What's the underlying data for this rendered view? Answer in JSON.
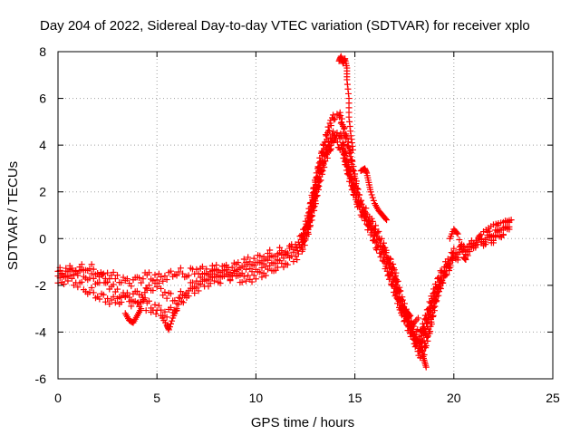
{
  "chart_data": {
    "type": "scatter",
    "title": "Day 204 of 2022, Sidereal Day-to-day VTEC variation (SDTVAR) for receiver xplo",
    "xlabel": "GPS time / hours",
    "ylabel": "SDTVAR / TECUs",
    "xlim": [
      0,
      25
    ],
    "ylim": [
      -6,
      8
    ],
    "xticks": [
      0,
      5,
      10,
      15,
      20,
      25
    ],
    "yticks": [
      -6,
      -4,
      -2,
      0,
      2,
      4,
      6,
      8
    ],
    "grid": true,
    "marker": "plus",
    "series": [
      {
        "name": "SDTVAR",
        "color": "#ff0000",
        "tracks": [
          [
            [
              0.0,
              -1.6
            ],
            [
              0.5,
              -1.3
            ],
            [
              1.0,
              -1.4
            ],
            [
              1.5,
              -1.6
            ],
            [
              2.0,
              -1.8
            ],
            [
              2.5,
              -1.5
            ],
            [
              3.0,
              -1.7
            ],
            [
              3.5,
              -1.9
            ],
            [
              4.0,
              -1.8
            ],
            [
              4.5,
              -1.6
            ],
            [
              5.0,
              -1.7
            ],
            [
              5.5,
              -1.6
            ],
            [
              6.0,
              -1.4
            ],
            [
              6.5,
              -1.5
            ],
            [
              7.0,
              -1.3
            ],
            [
              7.5,
              -1.4
            ],
            [
              8.0,
              -1.3
            ],
            [
              8.5,
              -1.3
            ],
            [
              9.0,
              -1.2
            ],
            [
              9.5,
              -1.0
            ],
            [
              10.0,
              -0.9
            ],
            [
              10.5,
              -0.7
            ],
            [
              11.0,
              -0.6
            ],
            [
              11.5,
              -0.5
            ],
            [
              12.0,
              -0.3
            ],
            [
              12.3,
              0.0
            ],
            [
              12.6,
              0.8
            ],
            [
              12.9,
              2.0
            ],
            [
              13.2,
              3.2
            ],
            [
              13.5,
              4.2
            ],
            [
              13.8,
              5.0
            ],
            [
              14.0,
              5.3
            ],
            [
              14.2,
              5.4
            ],
            [
              14.4,
              4.8
            ],
            [
              14.6,
              4.2
            ],
            [
              14.8,
              3.5
            ],
            [
              15.0,
              2.6
            ],
            [
              15.2,
              1.8
            ],
            [
              15.5,
              1.0
            ],
            [
              15.8,
              0.5
            ],
            [
              16.1,
              0.0
            ],
            [
              16.4,
              -0.4
            ],
            [
              16.7,
              -0.8
            ],
            [
              17.0,
              -1.4
            ],
            [
              17.3,
              -2.4
            ],
            [
              17.6,
              -3.2
            ],
            [
              17.9,
              -3.8
            ],
            [
              18.1,
              -4.0
            ],
            [
              18.3,
              -4.2
            ],
            [
              18.5,
              -3.6
            ],
            [
              18.8,
              -2.8
            ],
            [
              19.1,
              -2.0
            ],
            [
              19.4,
              -1.4
            ],
            [
              19.7,
              -1.0
            ],
            [
              20.0,
              -0.6
            ],
            [
              20.4,
              -0.4
            ],
            [
              20.8,
              -0.3
            ],
            [
              21.2,
              -0.1
            ],
            [
              21.6,
              0.0
            ],
            [
              22.0,
              0.1
            ],
            [
              22.4,
              0.2
            ],
            [
              22.8,
              0.5
            ]
          ],
          [
            [
              0.0,
              -1.9
            ],
            [
              0.5,
              -1.7
            ],
            [
              1.0,
              -1.9
            ],
            [
              1.5,
              -2.2
            ],
            [
              2.0,
              -2.4
            ],
            [
              2.5,
              -2.6
            ],
            [
              3.0,
              -2.7
            ],
            [
              3.5,
              -2.5
            ],
            [
              4.0,
              -2.4
            ],
            [
              4.5,
              -2.8
            ],
            [
              5.0,
              -3.0
            ],
            [
              5.5,
              -3.2
            ],
            [
              6.0,
              -2.9
            ],
            [
              6.5,
              -2.4
            ],
            [
              7.0,
              -2.1
            ],
            [
              7.5,
              -1.9
            ],
            [
              8.0,
              -1.8
            ],
            [
              8.5,
              -1.7
            ],
            [
              9.0,
              -1.5
            ],
            [
              9.5,
              -1.3
            ],
            [
              10.0,
              -1.2
            ],
            [
              10.5,
              -1.0
            ],
            [
              11.0,
              -0.9
            ],
            [
              11.5,
              -0.6
            ],
            [
              12.0,
              -0.4
            ],
            [
              12.3,
              -0.2
            ],
            [
              12.6,
              0.4
            ],
            [
              12.9,
              1.5
            ],
            [
              13.2,
              2.8
            ],
            [
              13.5,
              3.6
            ],
            [
              13.8,
              4.3
            ],
            [
              14.0,
              4.6
            ],
            [
              14.2,
              4.5
            ],
            [
              14.4,
              4.1
            ],
            [
              14.6,
              3.3
            ],
            [
              14.8,
              2.7
            ],
            [
              15.0,
              2.0
            ],
            [
              15.2,
              1.3
            ],
            [
              15.5,
              0.8
            ],
            [
              15.8,
              0.3
            ],
            [
              16.1,
              -0.3
            ],
            [
              16.4,
              -0.8
            ],
            [
              16.7,
              -1.5
            ],
            [
              17.0,
              -2.2
            ],
            [
              17.3,
              -3.0
            ],
            [
              17.6,
              -3.6
            ],
            [
              17.9,
              -4.2
            ],
            [
              18.1,
              -4.5
            ],
            [
              18.3,
              -4.7
            ],
            [
              18.5,
              -4.2
            ],
            [
              18.8,
              -3.1
            ],
            [
              19.1,
              -2.4
            ],
            [
              19.4,
              -1.8
            ],
            [
              19.7,
              -1.3
            ],
            [
              20.0,
              -0.9
            ],
            [
              20.4,
              -0.6
            ],
            [
              20.8,
              -0.4
            ],
            [
              21.2,
              -0.2
            ],
            [
              21.6,
              -0.1
            ],
            [
              22.0,
              0.0
            ],
            [
              22.4,
              0.2
            ],
            [
              22.8,
              0.4
            ]
          ],
          [
            [
              0.0,
              -1.4
            ],
            [
              0.5,
              -1.5
            ],
            [
              1.0,
              -1.3
            ],
            [
              1.5,
              -1.2
            ],
            [
              2.0,
              -1.4
            ],
            [
              2.5,
              -1.9
            ],
            [
              3.0,
              -2.3
            ],
            [
              3.5,
              -2.6
            ],
            [
              4.0,
              -2.9
            ],
            [
              4.5,
              -2.2
            ],
            [
              5.0,
              -2.0
            ],
            [
              5.5,
              -2.4
            ],
            [
              6.0,
              -2.6
            ],
            [
              6.5,
              -2.2
            ],
            [
              7.0,
              -1.8
            ],
            [
              7.5,
              -1.6
            ],
            [
              8.0,
              -1.5
            ],
            [
              8.5,
              -1.5
            ],
            [
              9.0,
              -1.7
            ],
            [
              9.5,
              -1.8
            ],
            [
              10.0,
              -1.6
            ],
            [
              10.5,
              -1.4
            ],
            [
              11.0,
              -1.2
            ],
            [
              11.5,
              -1.0
            ],
            [
              12.0,
              -0.8
            ],
            [
              12.3,
              -0.5
            ],
            [
              12.6,
              0.2
            ],
            [
              12.9,
              1.2
            ],
            [
              13.2,
              2.4
            ],
            [
              13.5,
              3.4
            ],
            [
              13.8,
              4.0
            ],
            [
              14.0,
              4.4
            ],
            [
              14.2,
              4.0
            ],
            [
              14.4,
              3.7
            ],
            [
              14.6,
              3.0
            ],
            [
              14.8,
              2.4
            ],
            [
              15.0,
              1.8
            ],
            [
              15.2,
              1.5
            ],
            [
              15.5,
              1.2
            ],
            [
              15.8,
              0.8
            ],
            [
              16.1,
              0.3
            ],
            [
              16.4,
              -0.2
            ],
            [
              16.7,
              -1.0
            ],
            [
              17.0,
              -1.8
            ],
            [
              17.3,
              -2.8
            ],
            [
              17.6,
              -3.4
            ],
            [
              17.9,
              -4.0
            ],
            [
              18.1,
              -4.6
            ],
            [
              18.3,
              -5.0
            ],
            [
              18.5,
              -4.8
            ],
            [
              18.8,
              -3.8
            ],
            [
              19.1,
              -2.6
            ],
            [
              19.4,
              -1.8
            ],
            [
              19.7,
              -1.2
            ],
            [
              20.0,
              -0.8
            ],
            [
              20.4,
              -0.5
            ],
            [
              20.8,
              -0.3
            ],
            [
              21.2,
              -0.1
            ],
            [
              21.6,
              0.1
            ],
            [
              22.0,
              0.3
            ],
            [
              22.4,
              0.5
            ],
            [
              22.8,
              0.7
            ]
          ]
        ],
        "clusters": [
          [
            [
              14.2,
              7.6
            ],
            [
              14.3,
              7.8
            ],
            [
              14.4,
              7.5
            ],
            [
              14.5,
              7.7
            ],
            [
              14.6,
              7.3
            ],
            [
              14.6,
              6.8
            ],
            [
              14.7,
              6.0
            ],
            [
              14.7,
              5.2
            ],
            [
              14.8,
              4.4
            ],
            [
              14.9,
              3.8
            ]
          ],
          [
            [
              3.4,
              -3.2
            ],
            [
              3.6,
              -3.5
            ],
            [
              3.8,
              -3.6
            ],
            [
              4.0,
              -3.3
            ],
            [
              4.2,
              -3.0
            ],
            [
              5.2,
              -3.3
            ],
            [
              5.5,
              -3.7
            ],
            [
              5.6,
              -3.9
            ],
            [
              5.8,
              -3.4
            ],
            [
              6.0,
              -3.0
            ]
          ],
          [
            [
              17.4,
              -3.0
            ],
            [
              17.6,
              -3.1
            ],
            [
              17.8,
              -3.3
            ],
            [
              18.0,
              -4.2
            ],
            [
              18.2,
              -4.4
            ],
            [
              18.4,
              -4.9
            ],
            [
              18.5,
              -5.2
            ],
            [
              18.6,
              -5.5
            ],
            [
              18.2,
              -3.4
            ],
            [
              17.9,
              -3.7
            ]
          ],
          [
            [
              15.3,
              2.9
            ],
            [
              15.5,
              3.0
            ],
            [
              15.6,
              2.8
            ],
            [
              15.7,
              2.4
            ],
            [
              15.8,
              2.0
            ],
            [
              16.0,
              1.5
            ],
            [
              16.2,
              1.2
            ],
            [
              16.4,
              1.0
            ],
            [
              16.6,
              0.8
            ]
          ],
          [
            [
              19.8,
              0.0
            ],
            [
              20.0,
              0.4
            ],
            [
              20.2,
              0.2
            ],
            [
              20.5,
              -0.8
            ],
            [
              20.6,
              -0.9
            ],
            [
              21.0,
              -0.2
            ],
            [
              21.5,
              0.3
            ],
            [
              22.0,
              0.6
            ],
            [
              22.5,
              0.7
            ],
            [
              22.9,
              0.8
            ]
          ]
        ]
      }
    ]
  }
}
